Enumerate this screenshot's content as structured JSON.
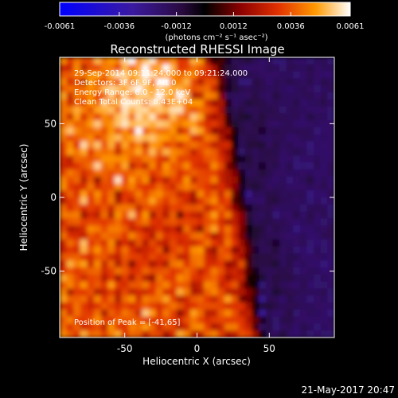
{
  "chart_data": {
    "type": "heatmap",
    "title": "Reconstructed RHESSI Image",
    "xlabel": "Heliocentric X (arcsec)",
    "ylabel": "Heliocentric Y (arcsec)",
    "xlim": [
      -95,
      95
    ],
    "ylim": [
      -95,
      95
    ],
    "x_ticks": [
      "-50",
      "0",
      "50"
    ],
    "y_ticks": [
      "50",
      "0",
      "-50"
    ],
    "x_tick_values": [
      -50,
      0,
      50
    ],
    "y_tick_values": [
      50,
      0,
      -50
    ],
    "colorbar": {
      "min": -0.0061,
      "max": 0.0061,
      "tick_labels": [
        "-0.0061",
        "-0.0036",
        "-0.0012",
        "0.0012",
        "0.0036",
        "0.0061"
      ],
      "tick_values": [
        -0.0061,
        -0.0036,
        -0.0012,
        0.0012,
        0.0036,
        0.0061
      ],
      "units": "(photons cm⁻² s⁻¹ asec⁻²)",
      "colors": [
        "#0000ff",
        "#2a1aa8",
        "#4a1f9a",
        "#000000",
        "#7a0000",
        "#cc2200",
        "#ff6600",
        "#ffcc00",
        "#ffffff"
      ]
    },
    "annotations": [
      "29-Sep-2014 09:11:24.000 to 09:21:24.000",
      "Detectors: 3F 6F 9F, Att 0",
      "Energy Range: 6.0 - 12.0 keV",
      "Clean    Total Counts: 8.43E+04"
    ],
    "peak_text": "Position of Peak = [-41,65]",
    "peak": [
      -41,
      65
    ],
    "grid": false
  },
  "footer": {
    "date": "21-May-2017 20:47"
  }
}
